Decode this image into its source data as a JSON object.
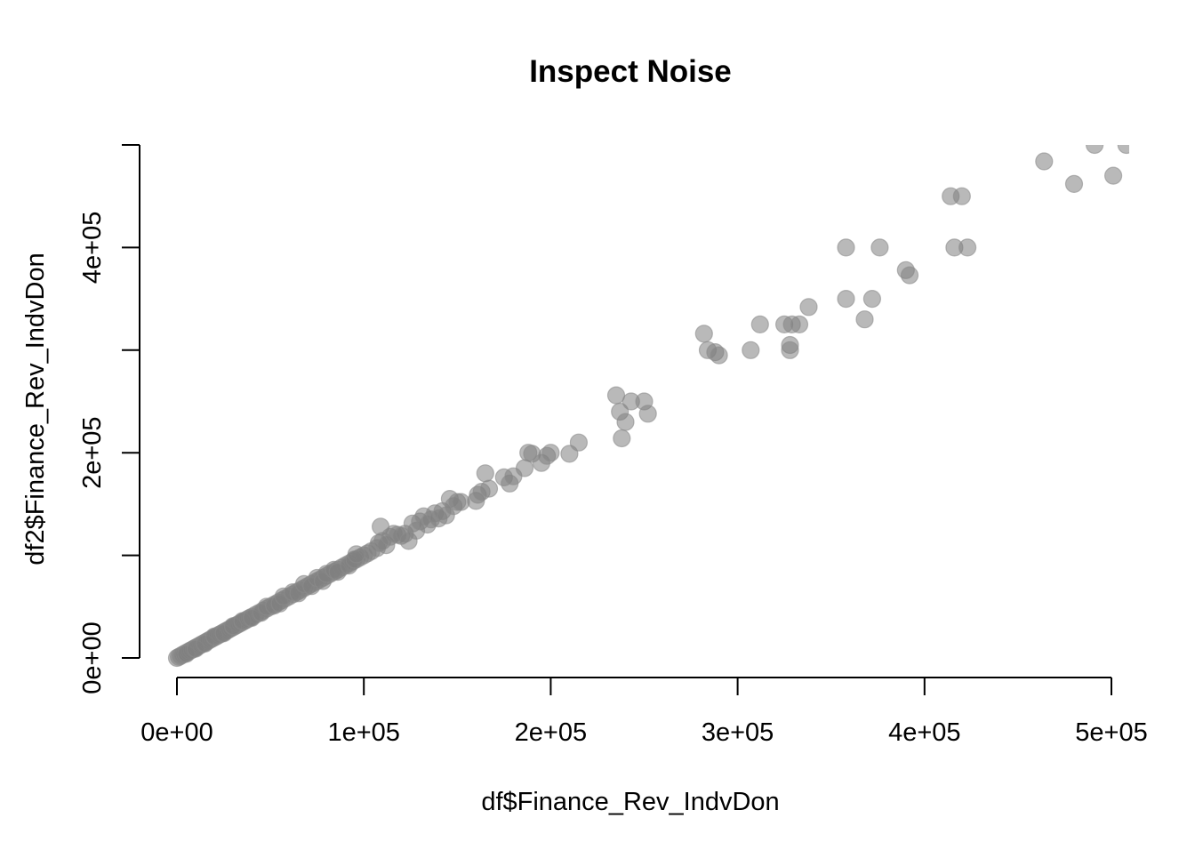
{
  "chart_data": {
    "type": "scatter",
    "title": "Inspect Noise",
    "xlabel": "df$Finance_Rev_IndvDon",
    "ylabel": "df2$Finance_Rev_IndvDon",
    "xlim": [
      0,
      500000
    ],
    "ylim": [
      0,
      500000
    ],
    "x_ticks": [
      {
        "value": 0,
        "label": "0e+00"
      },
      {
        "value": 100000,
        "label": "1e+05"
      },
      {
        "value": 200000,
        "label": "2e+05"
      },
      {
        "value": 300000,
        "label": "3e+05"
      },
      {
        "value": 400000,
        "label": "4e+05"
      },
      {
        "value": 500000,
        "label": "5e+05"
      }
    ],
    "y_ticks": [
      {
        "value": 0,
        "label": "0e+00"
      },
      {
        "value": 100000,
        "label": ""
      },
      {
        "value": 200000,
        "label": "2e+05"
      },
      {
        "value": 300000,
        "label": ""
      },
      {
        "value": 400000,
        "label": "4e+05"
      },
      {
        "value": 500000,
        "label": ""
      }
    ],
    "grid": false,
    "legend": "none",
    "point_color": "#808080",
    "point_opacity": 0.55,
    "points": [
      [
        0,
        0
      ],
      [
        1000,
        1000
      ],
      [
        2000,
        2000
      ],
      [
        3000,
        3000
      ],
      [
        4000,
        4000
      ],
      [
        5000,
        5000
      ],
      [
        6000,
        6000
      ],
      [
        7000,
        7000
      ],
      [
        8000,
        8000
      ],
      [
        9000,
        9000
      ],
      [
        10000,
        10000
      ],
      [
        11000,
        11000
      ],
      [
        12000,
        12000
      ],
      [
        13000,
        13000
      ],
      [
        14000,
        14000
      ],
      [
        15000,
        15000
      ],
      [
        16000,
        16000
      ],
      [
        17000,
        17000
      ],
      [
        18000,
        18000
      ],
      [
        19000,
        19000
      ],
      [
        20000,
        20000
      ],
      [
        21000,
        21000
      ],
      [
        22000,
        22000
      ],
      [
        23000,
        23000
      ],
      [
        24000,
        24000
      ],
      [
        25000,
        25000
      ],
      [
        26000,
        26000
      ],
      [
        27000,
        27000
      ],
      [
        28000,
        28000
      ],
      [
        29000,
        29000
      ],
      [
        30000,
        30000
      ],
      [
        31000,
        31000
      ],
      [
        32000,
        32000
      ],
      [
        33000,
        33000
      ],
      [
        34000,
        34000
      ],
      [
        35000,
        35000
      ],
      [
        36000,
        36000
      ],
      [
        37000,
        37000
      ],
      [
        38000,
        38000
      ],
      [
        39000,
        39000
      ],
      [
        40000,
        40000
      ],
      [
        42000,
        42000
      ],
      [
        44000,
        44000
      ],
      [
        46000,
        46000
      ],
      [
        48000,
        48000
      ],
      [
        50000,
        50000
      ],
      [
        52000,
        52000
      ],
      [
        54000,
        54000
      ],
      [
        56000,
        56000
      ],
      [
        58000,
        58000
      ],
      [
        60000,
        60000
      ],
      [
        62000,
        62000
      ],
      [
        64000,
        64000
      ],
      [
        66000,
        66000
      ],
      [
        68000,
        68000
      ],
      [
        70000,
        70000
      ],
      [
        72000,
        72000
      ],
      [
        74000,
        74000
      ],
      [
        76000,
        76000
      ],
      [
        78000,
        78000
      ],
      [
        80000,
        80000
      ],
      [
        82000,
        82000
      ],
      [
        84000,
        84000
      ],
      [
        86000,
        86000
      ],
      [
        88000,
        88000
      ],
      [
        90000,
        90000
      ],
      [
        92000,
        92000
      ],
      [
        94000,
        94000
      ],
      [
        96000,
        96000
      ],
      [
        98000,
        98000
      ],
      [
        100000,
        100000
      ],
      [
        102000,
        102000
      ],
      [
        104000,
        104000
      ],
      [
        5000,
        4000
      ],
      [
        10000,
        9000
      ],
      [
        15000,
        14000
      ],
      [
        20000,
        21000
      ],
      [
        25000,
        24000
      ],
      [
        30000,
        31000
      ],
      [
        35000,
        36000
      ],
      [
        40000,
        39000
      ],
      [
        45000,
        44000
      ],
      [
        48000,
        50000
      ],
      [
        52000,
        51000
      ],
      [
        55000,
        53000
      ],
      [
        57000,
        60000
      ],
      [
        62000,
        64000
      ],
      [
        65000,
        63000
      ],
      [
        68000,
        72000
      ],
      [
        72000,
        70000
      ],
      [
        75000,
        78000
      ],
      [
        78000,
        75000
      ],
      [
        80000,
        82000
      ],
      [
        84000,
        86000
      ],
      [
        86000,
        84000
      ],
      [
        92000,
        90000
      ],
      [
        95000,
        96000
      ],
      [
        96000,
        101000
      ],
      [
        107000,
        107000
      ],
      [
        108000,
        112000
      ],
      [
        109000,
        128000
      ],
      [
        110000,
        114000
      ],
      [
        112000,
        110000
      ],
      [
        114000,
        118000
      ],
      [
        116000,
        121000
      ],
      [
        118000,
        120000
      ],
      [
        120000,
        119000
      ],
      [
        122000,
        121000
      ],
      [
        124000,
        114000
      ],
      [
        126000,
        131000
      ],
      [
        128000,
        124000
      ],
      [
        130000,
        133000
      ],
      [
        132000,
        138000
      ],
      [
        134000,
        130000
      ],
      [
        136000,
        135000
      ],
      [
        138000,
        141000
      ],
      [
        140000,
        136000
      ],
      [
        142000,
        143000
      ],
      [
        144000,
        139000
      ],
      [
        146000,
        155000
      ],
      [
        148000,
        148000
      ],
      [
        150000,
        152000
      ],
      [
        152000,
        152000
      ],
      [
        160000,
        153000
      ],
      [
        161000,
        159000
      ],
      [
        163000,
        162000
      ],
      [
        165000,
        180000
      ],
      [
        167000,
        165000
      ],
      [
        175000,
        176000
      ],
      [
        178000,
        170000
      ],
      [
        180000,
        177000
      ],
      [
        186000,
        185000
      ],
      [
        188000,
        200000
      ],
      [
        190000,
        199000
      ],
      [
        195000,
        190000
      ],
      [
        198000,
        197000
      ],
      [
        200000,
        200000
      ],
      [
        210000,
        199000
      ],
      [
        215000,
        210000
      ],
      [
        235000,
        256000
      ],
      [
        237000,
        240000
      ],
      [
        238000,
        214000
      ],
      [
        240000,
        230000
      ],
      [
        243000,
        250000
      ],
      [
        250000,
        250000
      ],
      [
        252000,
        238000
      ],
      [
        282000,
        316000
      ],
      [
        284000,
        300000
      ],
      [
        288000,
        298000
      ],
      [
        290000,
        295000
      ],
      [
        307000,
        300000
      ],
      [
        312000,
        325000
      ],
      [
        325000,
        325000
      ],
      [
        328000,
        305000
      ],
      [
        328000,
        300000
      ],
      [
        329000,
        325000
      ],
      [
        333000,
        325000
      ],
      [
        338000,
        342000
      ],
      [
        358000,
        400000
      ],
      [
        358000,
        350000
      ],
      [
        368000,
        330000
      ],
      [
        372000,
        350000
      ],
      [
        376000,
        400000
      ],
      [
        390000,
        378000
      ],
      [
        392000,
        373000
      ],
      [
        414000,
        450000
      ],
      [
        416000,
        400000
      ],
      [
        420000,
        450000
      ],
      [
        423000,
        400000
      ],
      [
        464000,
        484000
      ],
      [
        480000,
        462000
      ],
      [
        491000,
        500000
      ],
      [
        501000,
        470000
      ],
      [
        508000,
        500000
      ]
    ]
  }
}
